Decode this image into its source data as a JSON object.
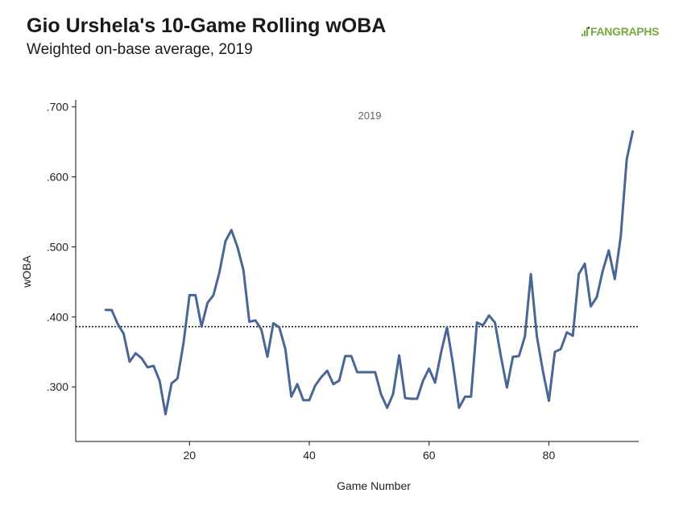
{
  "header": {
    "title": "Gio Urshela's 10-Game Rolling wOBA",
    "subtitle": "Weighted on-base average, 2019",
    "brand": "FANGRAPHS"
  },
  "colors": {
    "line": "#4a6694",
    "brand": "#79a83e",
    "reference": "#111111"
  },
  "chart_data": {
    "type": "line",
    "title": "Gio Urshela's 10-Game Rolling wOBA",
    "subtitle": "Weighted on-base average, 2019",
    "xlabel": "Game Number",
    "ylabel": "wOBA",
    "xlim": [
      1,
      95
    ],
    "ylim": [
      0.222,
      0.71
    ],
    "x_ticks": [
      20,
      40,
      60,
      80
    ],
    "x_tick_labels": [
      "20",
      "40",
      "60",
      "80"
    ],
    "y_ticks": [
      0.3,
      0.4,
      0.5,
      0.6,
      0.7
    ],
    "y_tick_labels": [
      ".300",
      ".400",
      ".500",
      ".600",
      ".700"
    ],
    "grid": false,
    "annotation": "2019",
    "reference_line": {
      "y": 0.386,
      "style": "dotted"
    },
    "series": [
      {
        "x": [
          6,
          7,
          8,
          9,
          10,
          11,
          12,
          13,
          14,
          15,
          16,
          17,
          18,
          19,
          20,
          21,
          22,
          23,
          24,
          25,
          26,
          27,
          28,
          29,
          30,
          31,
          32,
          33,
          34,
          35,
          36,
          37,
          38,
          39,
          40,
          41,
          42,
          43,
          44,
          45,
          46,
          47,
          48,
          49,
          50,
          51,
          52,
          53,
          54,
          55,
          56,
          57,
          58,
          59,
          60,
          61,
          62,
          63,
          64,
          65,
          66,
          67,
          68,
          69,
          70,
          71,
          72,
          73,
          74,
          75,
          76,
          77,
          78,
          79,
          80,
          81,
          82,
          83,
          84,
          85,
          86,
          87,
          88,
          89,
          90,
          91,
          92,
          93,
          94
        ],
        "values": [
          0.41,
          0.41,
          0.39,
          0.376,
          0.336,
          0.348,
          0.341,
          0.328,
          0.33,
          0.309,
          0.261,
          0.305,
          0.312,
          0.363,
          0.431,
          0.431,
          0.386,
          0.42,
          0.431,
          0.464,
          0.508,
          0.524,
          0.5,
          0.467,
          0.393,
          0.395,
          0.382,
          0.343,
          0.391,
          0.385,
          0.354,
          0.286,
          0.304,
          0.281,
          0.281,
          0.302,
          0.314,
          0.323,
          0.304,
          0.309,
          0.344,
          0.344,
          0.321,
          0.321,
          0.321,
          0.321,
          0.289,
          0.27,
          0.29,
          0.345,
          0.284,
          0.283,
          0.283,
          0.309,
          0.326,
          0.306,
          0.349,
          0.385,
          0.332,
          0.27,
          0.286,
          0.286,
          0.392,
          0.388,
          0.402,
          0.392,
          0.343,
          0.299,
          0.343,
          0.344,
          0.372,
          0.461,
          0.372,
          0.323,
          0.28,
          0.35,
          0.354,
          0.378,
          0.373,
          0.461,
          0.476,
          0.415,
          0.428,
          0.466,
          0.495,
          0.454,
          0.515,
          0.625,
          0.665
        ]
      }
    ]
  }
}
